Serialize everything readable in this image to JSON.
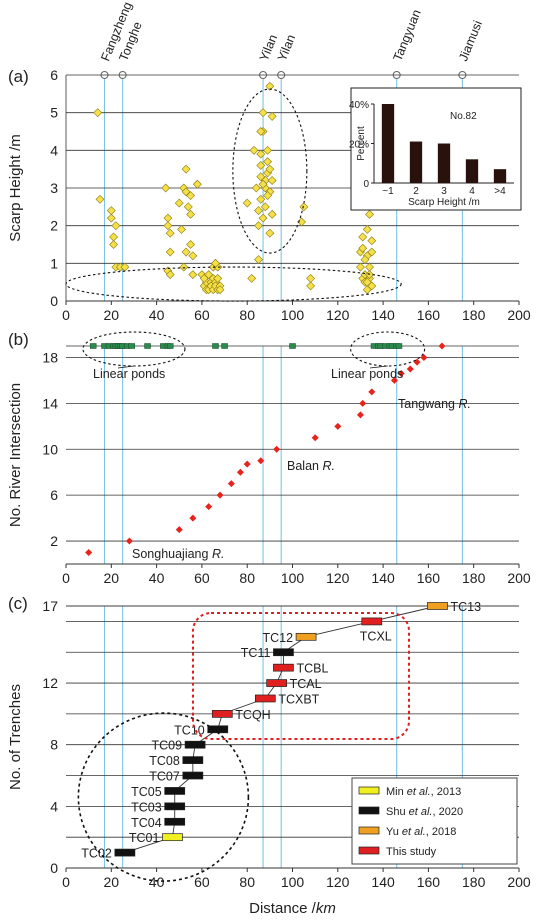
{
  "towns": [
    {
      "name": "Fangzheng",
      "x": 17
    },
    {
      "name": "Tonghe",
      "x": 25
    },
    {
      "name": "Yilan",
      "x": 87
    },
    {
      "name": "Yilan",
      "x": 95
    },
    {
      "name": "Tangyuan",
      "x": 146
    },
    {
      "name": "Jiamusi",
      "x": 175
    }
  ],
  "x_axis": {
    "label": "Distance /km",
    "ticks": [
      0,
      20,
      40,
      60,
      80,
      100,
      120,
      140,
      160,
      180,
      200
    ]
  },
  "colors": {
    "vline": "#7fc4e6",
    "scarp": "#f5e04a",
    "river": "#e8231c",
    "pond": "#2d8a4e",
    "min": "#f0f020",
    "shu": "#111111",
    "yu": "#f0a020",
    "this": "#e02020"
  },
  "chart_data": [
    {
      "type": "scatter",
      "panel": "(a)",
      "ylabel": "Scarp Height /m",
      "xlim": [
        0,
        200
      ],
      "ylim": [
        0,
        6
      ],
      "yticks": [
        0,
        1,
        2,
        3,
        4,
        5,
        6
      ],
      "points": [
        [
          14,
          5.0
        ],
        [
          15,
          2.7
        ],
        [
          20,
          2.2
        ],
        [
          20,
          2.4
        ],
        [
          21,
          1.7
        ],
        [
          21,
          1.5
        ],
        [
          22,
          2.0
        ],
        [
          22,
          0.9
        ],
        [
          24,
          0.9
        ],
        [
          26,
          0.9
        ],
        [
          44,
          3.0
        ],
        [
          45,
          2.2
        ],
        [
          45,
          2.0
        ],
        [
          46,
          1.8
        ],
        [
          46,
          1.3
        ],
        [
          45,
          0.8
        ],
        [
          46,
          0.7
        ],
        [
          50,
          2.6
        ],
        [
          51,
          1.9
        ],
        [
          52,
          3.0
        ],
        [
          53,
          2.9
        ],
        [
          53,
          1.3
        ],
        [
          52,
          0.9
        ],
        [
          55,
          2.8
        ],
        [
          55,
          2.3
        ],
        [
          55,
          1.5
        ],
        [
          56,
          1.2
        ],
        [
          56,
          0.7
        ],
        [
          61,
          0.4
        ],
        [
          62,
          0.3
        ],
        [
          62,
          0.5
        ],
        [
          63,
          0.3
        ],
        [
          64,
          0.5
        ],
        [
          64,
          0.4
        ],
        [
          65,
          0.6
        ],
        [
          65,
          0.3
        ],
        [
          66,
          0.5
        ],
        [
          66,
          0.4
        ],
        [
          67,
          0.3
        ],
        [
          67,
          0.6
        ],
        [
          68,
          0.4
        ],
        [
          68,
          0.3
        ],
        [
          60,
          0.7
        ],
        [
          61,
          0.6
        ],
        [
          63,
          0.7
        ],
        [
          65,
          0.9
        ],
        [
          66,
          1.0
        ],
        [
          67,
          0.9
        ],
        [
          66,
          1.0
        ],
        [
          53,
          3.5
        ],
        [
          54,
          2.5
        ],
        [
          58,
          3.1
        ],
        [
          80,
          2.6
        ],
        [
          82,
          0.6
        ],
        [
          85,
          1.1
        ],
        [
          83,
          4.0
        ],
        [
          86,
          3.9
        ],
        [
          86,
          3.6
        ],
        [
          86,
          3.3
        ],
        [
          87,
          5.0
        ],
        [
          87,
          4.5
        ],
        [
          88,
          3.2
        ],
        [
          88,
          3.0
        ],
        [
          89,
          4.0
        ],
        [
          89,
          3.7
        ],
        [
          89,
          3.4
        ],
        [
          90,
          5.7
        ],
        [
          90,
          3.5
        ],
        [
          90,
          2.9
        ],
        [
          91,
          2.3
        ],
        [
          91,
          3.2
        ],
        [
          91,
          4.9
        ],
        [
          86,
          2.7
        ],
        [
          85,
          2.4
        ],
        [
          85,
          2.0
        ],
        [
          87,
          2.2
        ],
        [
          88,
          2.5
        ],
        [
          89,
          2.8
        ],
        [
          90,
          1.8
        ],
        [
          84,
          3.0
        ],
        [
          86,
          4.5
        ],
        [
          87,
          3.1
        ],
        [
          104,
          2.1
        ],
        [
          105,
          2.5
        ],
        [
          108,
          0.4
        ],
        [
          108,
          0.6
        ],
        [
          130,
          1.3
        ],
        [
          130,
          0.9
        ],
        [
          131,
          1.7
        ],
        [
          131,
          0.6
        ],
        [
          131,
          1.4
        ],
        [
          132,
          0.5
        ],
        [
          132,
          0.7
        ],
        [
          133,
          1.9
        ],
        [
          133,
          0.3
        ],
        [
          133,
          1.2
        ],
        [
          134,
          2.3
        ],
        [
          134,
          0.6
        ],
        [
          134,
          0.9
        ],
        [
          135,
          0.4
        ],
        [
          135,
          1.6
        ],
        [
          135,
          1.3
        ],
        [
          133,
          0.5
        ],
        [
          134,
          0.7
        ],
        [
          132,
          1.1
        ]
      ],
      "ellipses": [
        {
          "cx": 30,
          "cy": 0.45,
          "note": "low group left"
        },
        {
          "cx": 90,
          "cy": 3.45,
          "note": "Yilan cluster"
        }
      ],
      "inset": {
        "type": "bar",
        "label": "No.82",
        "ylabel": "Percent",
        "xlabel": "Scarp Height /m",
        "categories": [
          "~1",
          "2",
          "3",
          "4",
          ">4"
        ],
        "values": [
          40,
          21,
          20,
          12,
          7
        ],
        "yticks": [
          "0",
          "20%",
          "40%"
        ]
      }
    },
    {
      "type": "scatter",
      "panel": "(b)",
      "ylabel": "No. River Intersection",
      "xlim": [
        0,
        200
      ],
      "ylim": [
        0,
        19
      ],
      "yticks": [
        2,
        6,
        10,
        14,
        18
      ],
      "river_points": [
        [
          10,
          1
        ],
        [
          28,
          2
        ],
        [
          50,
          3
        ],
        [
          56,
          4
        ],
        [
          63,
          5
        ],
        [
          68,
          6
        ],
        [
          73,
          7
        ],
        [
          77,
          8
        ],
        [
          80,
          8.7
        ],
        [
          86,
          9
        ],
        [
          93,
          10
        ],
        [
          110,
          11
        ],
        [
          120,
          12
        ],
        [
          130,
          13
        ],
        [
          131,
          14
        ],
        [
          135,
          15
        ],
        [
          145,
          16
        ],
        [
          148,
          16.6
        ],
        [
          152,
          17
        ],
        [
          155,
          17.6
        ],
        [
          158,
          18
        ],
        [
          166,
          19
        ]
      ],
      "ponds": [
        12,
        17,
        19,
        21,
        22,
        23,
        24,
        25,
        27,
        29,
        36,
        43,
        45,
        46,
        66,
        70,
        100,
        136,
        138,
        139,
        141,
        143,
        144,
        146,
        147
      ],
      "annotations": [
        {
          "text": "Linear ponds",
          "x": 30
        },
        {
          "text": "Linear ponds",
          "x": 140
        },
        {
          "text": "Tangwang R.",
          "x": 153
        },
        {
          "text": "Balan R.",
          "x": 97
        },
        {
          "text": "Songhuajiang R.",
          "x": 45
        }
      ]
    },
    {
      "type": "bar",
      "panel": "(c)",
      "ylabel": "No. of Trenches",
      "xlim": [
        0,
        200
      ],
      "ylim": [
        0,
        17
      ],
      "yticks": [
        0,
        4,
        8,
        12,
        17
      ],
      "trenches": [
        {
          "name": "TC02",
          "x": 26,
          "y": 1,
          "source": "shu"
        },
        {
          "name": "TC01",
          "x": 47,
          "y": 2,
          "source": "min"
        },
        {
          "name": "TC04",
          "x": 48,
          "y": 3,
          "source": "shu"
        },
        {
          "name": "TC03",
          "x": 48,
          "y": 4,
          "source": "shu"
        },
        {
          "name": "TC05",
          "x": 48,
          "y": 5,
          "source": "shu"
        },
        {
          "name": "TC07",
          "x": 56,
          "y": 6,
          "source": "shu"
        },
        {
          "name": "TC08",
          "x": 56,
          "y": 7,
          "source": "shu"
        },
        {
          "name": "TC09",
          "x": 57,
          "y": 8,
          "source": "shu"
        },
        {
          "name": "TC10",
          "x": 67,
          "y": 9,
          "source": "shu"
        },
        {
          "name": "TCQH",
          "x": 69,
          "y": 10,
          "source": "this"
        },
        {
          "name": "TCXBT",
          "x": 88,
          "y": 11,
          "source": "this"
        },
        {
          "name": "TCAL",
          "x": 93,
          "y": 12,
          "source": "this"
        },
        {
          "name": "TCBL",
          "x": 96,
          "y": 13,
          "source": "this"
        },
        {
          "name": "TC11",
          "x": 96,
          "y": 14,
          "source": "shu"
        },
        {
          "name": "TC12",
          "x": 106,
          "y": 15,
          "source": "yu"
        },
        {
          "name": "TCXL",
          "x": 135,
          "y": 16,
          "source": "this"
        },
        {
          "name": "TC13",
          "x": 164,
          "y": 17,
          "source": "yu"
        }
      ],
      "legend": [
        {
          "key": "min",
          "pre": "Min ",
          "em": "et al.",
          "post": ", 2013"
        },
        {
          "key": "shu",
          "pre": "Shu ",
          "em": "et al.",
          "post": ", 2020"
        },
        {
          "key": "yu",
          "pre": "Yu ",
          "em": "et al.",
          "post": ", 2018"
        },
        {
          "key": "this",
          "pre": "This study",
          "em": "",
          "post": ""
        }
      ]
    }
  ]
}
